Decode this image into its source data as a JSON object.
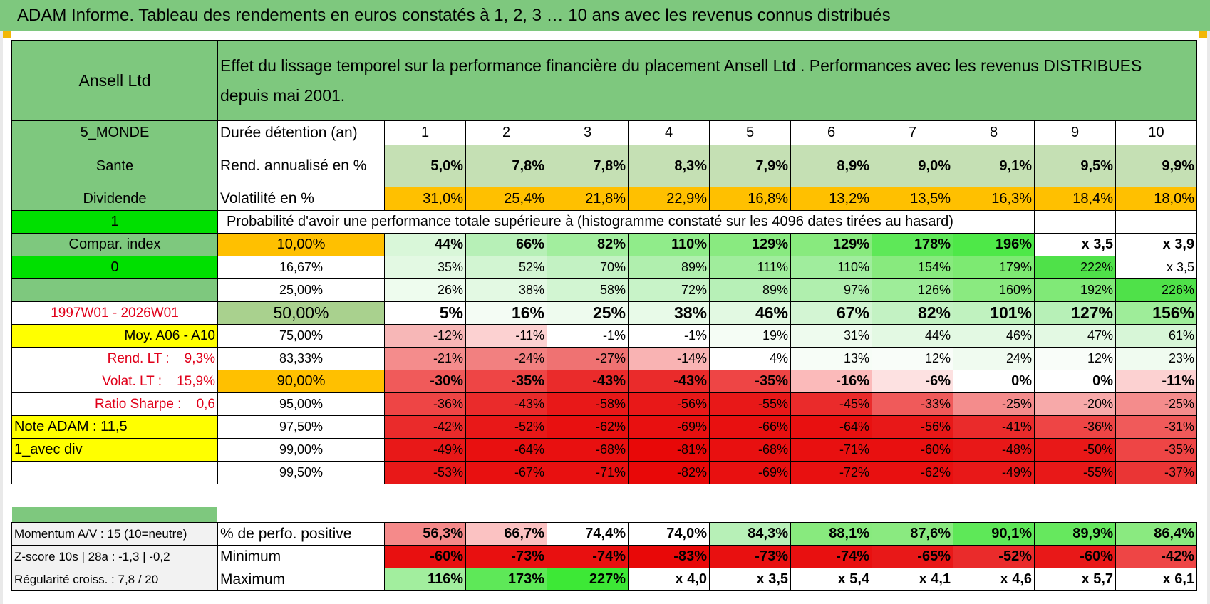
{
  "title": "ADAM Informe. Tableau des rendements en euros constatés à 1, 2, 3 … 10 ans avec les revenus connus distribués",
  "header": {
    "fund_name": "Ansell Ltd",
    "description": "Effet du lissage temporel sur la performance financière du placement Ansell Ltd . Performances avec les revenus DISTRIBUES depuis mai 2001."
  },
  "left_labels": {
    "region": "5_MONDE",
    "sector": "Sante",
    "type": "Dividende",
    "flag1": "1",
    "compar": "Compar. index",
    "flag0": "0",
    "period": "1997W01 - 2026W01",
    "moy": "Moy. A06 - A10",
    "rend_lt": "Rend. LT :    9,3%",
    "volat_lt": "Volat. LT :    15,9%",
    "sharpe": "Ratio Sharpe :    0,6",
    "note": "Note ADAM : 11,5",
    "avec_div": "1_avec div",
    "momentum": "Momentum A/V : 15 (10=neutre)",
    "zscore": "Z-score 10s | 28a : -1,3 | -0,2",
    "regularite": "Régularité croiss. : 7,8 / 20"
  },
  "row_labels": {
    "duration": "Durée détention (an)",
    "rend": "Rend. annualisé en %",
    "vol": "Volatilité en %",
    "proba": "Probabilité d'avoir une performance totale supérieure à (histogramme constaté sur les 4096 dates tirées au hasard)",
    "positive": "% de perfo. positive",
    "minimum": "Minimum",
    "maximum": "Maximum"
  },
  "years": [
    "1",
    "2",
    "3",
    "4",
    "5",
    "6",
    "7",
    "8",
    "9",
    "10"
  ],
  "rend": [
    "5,0%",
    "7,8%",
    "7,8%",
    "8,3%",
    "7,9%",
    "8,9%",
    "9,0%",
    "9,1%",
    "9,5%",
    "9,9%"
  ],
  "vol": [
    "31,0%",
    "25,4%",
    "21,8%",
    "22,9%",
    "16,8%",
    "13,2%",
    "13,5%",
    "16,3%",
    "18,4%",
    "18,0%"
  ],
  "proba_rows": [
    {
      "pct": "10,00%",
      "vals": [
        "44%",
        "66%",
        "82%",
        "110%",
        "129%",
        "129%",
        "178%",
        "196%",
        "x 3,5",
        "x 3,9"
      ]
    },
    {
      "pct": "16,67%",
      "vals": [
        "35%",
        "52%",
        "70%",
        "89%",
        "111%",
        "110%",
        "154%",
        "179%",
        "222%",
        "x 3,5"
      ]
    },
    {
      "pct": "25,00%",
      "vals": [
        "26%",
        "38%",
        "58%",
        "72%",
        "89%",
        "97%",
        "126%",
        "160%",
        "192%",
        "226%"
      ]
    },
    {
      "pct": "50,00%",
      "vals": [
        "5%",
        "16%",
        "25%",
        "38%",
        "46%",
        "67%",
        "82%",
        "101%",
        "127%",
        "156%"
      ]
    },
    {
      "pct": "75,00%",
      "vals": [
        "-12%",
        "-11%",
        "-1%",
        "-1%",
        "19%",
        "31%",
        "44%",
        "46%",
        "47%",
        "61%"
      ]
    },
    {
      "pct": "83,33%",
      "vals": [
        "-21%",
        "-24%",
        "-27%",
        "-14%",
        "4%",
        "13%",
        "12%",
        "24%",
        "12%",
        "23%"
      ]
    },
    {
      "pct": "90,00%",
      "vals": [
        "-30%",
        "-35%",
        "-43%",
        "-43%",
        "-35%",
        "-16%",
        "-6%",
        "0%",
        "0%",
        "-11%"
      ]
    },
    {
      "pct": "95,00%",
      "vals": [
        "-36%",
        "-43%",
        "-58%",
        "-56%",
        "-55%",
        "-45%",
        "-33%",
        "-25%",
        "-20%",
        "-25%"
      ]
    },
    {
      "pct": "97,50%",
      "vals": [
        "-42%",
        "-52%",
        "-62%",
        "-69%",
        "-66%",
        "-64%",
        "-56%",
        "-41%",
        "-36%",
        "-31%"
      ]
    },
    {
      "pct": "99,00%",
      "vals": [
        "-49%",
        "-64%",
        "-68%",
        "-81%",
        "-68%",
        "-71%",
        "-60%",
        "-48%",
        "-50%",
        "-35%"
      ]
    },
    {
      "pct": "99,50%",
      "vals": [
        "-53%",
        "-67%",
        "-71%",
        "-82%",
        "-69%",
        "-72%",
        "-62%",
        "-49%",
        "-55%",
        "-37%"
      ]
    }
  ],
  "positive": [
    "56,3%",
    "66,7%",
    "74,4%",
    "74,0%",
    "84,3%",
    "88,1%",
    "87,6%",
    "90,1%",
    "89,9%",
    "86,4%"
  ],
  "minimum": [
    "-60%",
    "-73%",
    "-74%",
    "-83%",
    "-73%",
    "-74%",
    "-65%",
    "-52%",
    "-60%",
    "-42%"
  ],
  "maximum": [
    "116%",
    "173%",
    "227%",
    "x 4,0",
    "x 3,5",
    "x 5,4",
    "x 4,1",
    "x 4,6",
    "x 5,7",
    "x 6,1"
  ],
  "colors": {
    "rend_bg": [
      "#c5e0b4",
      "#c5e0b4",
      "#c5e0b4",
      "#c5e0b4",
      "#c5e0b4",
      "#c5e0b4",
      "#c5e0b4",
      "#c5e0b4",
      "#c5e0b4",
      "#c5e0b4"
    ],
    "vol_bg": [
      "#ffc000",
      "#ffc000",
      "#ffc000",
      "#ffc000",
      "#ffc000",
      "#ffc000",
      "#ffc000",
      "#ffc000",
      "#ffc000",
      "#ffc000"
    ],
    "proba_bg": [
      [
        "#d9f7d9",
        "#b7f0b7",
        "#a2ee9e",
        "#90ec8a",
        "#89ea80",
        "#88ea7e",
        "#5ee858",
        "#4ee848",
        "#ffffff",
        "#ffffff"
      ],
      [
        "#e3f9e3",
        "#d2f5d2",
        "#c3f2c3",
        "#b0efae",
        "#a0ed9c",
        "#a0ed9d",
        "#88ea7e",
        "#7dea72",
        "#4fe149",
        "#ffffff"
      ],
      [
        "#eefcee",
        "#e3f9e3",
        "#d2f5d2",
        "#c8f3c8",
        "#b7f0b7",
        "#b0efae",
        "#9eed99",
        "#8aea80",
        "#80e977",
        "#4fe149"
      ],
      [
        "#ffffff",
        "#f4fcf4",
        "#eefbee",
        "#e8fae8",
        "#e2f9e2",
        "#d3f5d3",
        "#c3f2c3",
        "#c0f2bf",
        "#b7f0b7",
        "#9eed99"
      ],
      [
        "#f7b7b7",
        "#fcd1d1",
        "#ffffff",
        "#ffffff",
        "#f5fdf5",
        "#eefbee",
        "#e3f9e3",
        "#e3f9e3",
        "#e3f9e3",
        "#d7f6d7"
      ],
      [
        "#f48c8c",
        "#f28080",
        "#ef7272",
        "#f9b3b3",
        "#ffffff",
        "#f7fdf7",
        "#f9fdf9",
        "#f0fbf0",
        "#f9fdf9",
        "#f0fbf0"
      ],
      [
        "#f05a5a",
        "#ee4545",
        "#ea2b2b",
        "#ea2b2b",
        "#ee4545",
        "#fbbaba",
        "#fde1e1",
        "#ffffff",
        "#ffffff",
        "#fcd1d1"
      ],
      [
        "#ee4545",
        "#ea2b2b",
        "#e81818",
        "#e81818",
        "#e81818",
        "#ea2b2b",
        "#f05a5a",
        "#f48c8c",
        "#f7a9a9",
        "#f48c8c"
      ],
      [
        "#ea2b2b",
        "#e81818",
        "#e81010",
        "#e81010",
        "#e81010",
        "#e81010",
        "#e81818",
        "#ea2b2b",
        "#ee4545",
        "#f05a5a"
      ],
      [
        "#e81818",
        "#e81010",
        "#e81010",
        "#e80808",
        "#e81010",
        "#e81010",
        "#e81010",
        "#e81818",
        "#e81818",
        "#ee4545"
      ],
      [
        "#e81818",
        "#e81010",
        "#e81010",
        "#e80808",
        "#e81010",
        "#e81010",
        "#e81010",
        "#e81818",
        "#e81818",
        "#ea3535"
      ]
    ],
    "positive_bg": [
      "#f58a8a",
      "#fbc2c2",
      "#ffffff",
      "#ffffff",
      "#b7f0b7",
      "#88ea7e",
      "#8aea80",
      "#5ee858",
      "#66e85e",
      "#8aea80"
    ],
    "minimum_bg": [
      "#e81010",
      "#e81010",
      "#e81010",
      "#e80808",
      "#e81010",
      "#e81010",
      "#e81818",
      "#ea2b2b",
      "#e81818",
      "#ee4545"
    ],
    "maximum_bg": [
      "#a2ee9e",
      "#5ee858",
      "#3de836",
      "#ffffff",
      "#ffffff",
      "#ffffff",
      "#ffffff",
      "#ffffff",
      "#ffffff",
      "#ffffff"
    ]
  }
}
